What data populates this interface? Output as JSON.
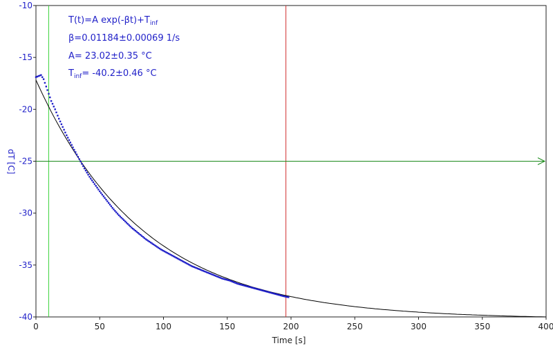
{
  "chart_data": {
    "type": "scatter",
    "xlabel": "Time [s]",
    "ylabel": "dT [C]",
    "xlim": [
      0,
      400
    ],
    "ylim": [
      -40,
      -10
    ],
    "x_ticks": [
      0,
      50,
      100,
      150,
      200,
      250,
      300,
      350,
      400
    ],
    "y_ticks": [
      -10,
      -15,
      -20,
      -25,
      -30,
      -35,
      -40
    ],
    "grid": false,
    "annotations": {
      "formula_main": "T(t)=A exp(-βt)+T",
      "formula_sub": "inf",
      "beta": "β=0.01184±0.00069 1/s",
      "amp": "A= 23.02±0.35 °C",
      "tinf_label": "T",
      "tinf_sub": "inf",
      "tinf_value": "= -40.2±0.46 °C"
    },
    "markers": {
      "green_vertical_x": 10,
      "red_vertical_x": 196,
      "horizontal_y": -25
    },
    "fit": {
      "A": 23.02,
      "beta": 0.01184,
      "T_inf": -40.2,
      "x_range": [
        0,
        400
      ]
    },
    "series": [
      {
        "style": "points",
        "color": "#1f1fc8",
        "x": [
          0,
          2,
          4,
          6,
          8,
          10,
          12,
          15,
          18,
          21,
          24,
          27,
          30,
          34,
          38,
          42,
          46,
          50,
          55,
          60,
          65,
          70,
          75,
          80,
          86,
          92,
          98,
          104,
          110,
          116,
          122,
          128,
          134,
          140,
          146,
          152,
          158,
          164,
          170,
          176,
          182,
          188,
          194,
          198
        ],
        "y": [
          -16.9,
          -16.8,
          -16.7,
          -17.1,
          -17.8,
          -18.5,
          -19.2,
          -20.0,
          -20.9,
          -21.7,
          -22.5,
          -23.2,
          -23.9,
          -24.8,
          -25.7,
          -26.5,
          -27.2,
          -27.9,
          -28.7,
          -29.5,
          -30.2,
          -30.8,
          -31.4,
          -31.9,
          -32.5,
          -33.0,
          -33.5,
          -33.9,
          -34.3,
          -34.7,
          -35.1,
          -35.4,
          -35.7,
          -36.0,
          -36.3,
          -36.5,
          -36.8,
          -37.0,
          -37.2,
          -37.4,
          -37.6,
          -37.8,
          -38.0,
          -38.1
        ]
      }
    ]
  }
}
